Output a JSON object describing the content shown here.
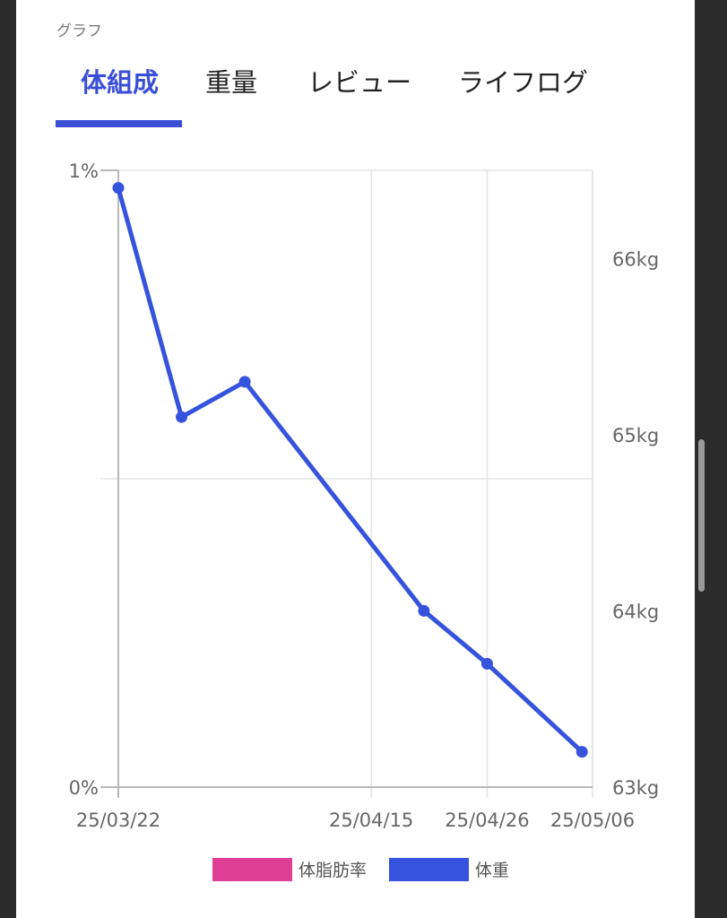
{
  "section_label": "グラフ",
  "tabs": [
    {
      "label": "体組成",
      "active": true
    },
    {
      "label": "重量",
      "active": false
    },
    {
      "label": "レビュー",
      "active": false
    },
    {
      "label": "ライフログ",
      "active": false
    }
  ],
  "colors": {
    "accent": "#3a4fd6",
    "weight_line": "#3553dc",
    "body_fat": "#dd3f95",
    "grid": "#e3e3e3",
    "axis": "#b9b9b9"
  },
  "chart_data": {
    "type": "line",
    "x_ticks": [
      "25/03/22",
      "25/04/15",
      "25/04/26",
      "25/05/06"
    ],
    "x_range": [
      "25/03/22",
      "25/05/06"
    ],
    "y_left": {
      "ticks": [
        "1%",
        "0%"
      ],
      "range": [
        0,
        1
      ]
    },
    "y_right": {
      "ticks": [
        "66kg",
        "65kg",
        "64kg",
        "63kg"
      ],
      "range": [
        63,
        66.5
      ]
    },
    "grid": true,
    "legend_position": "bottom",
    "series": [
      {
        "name": "体脂肪率",
        "axis": "left",
        "color": "#dd3f95",
        "points": []
      },
      {
        "name": "体重",
        "axis": "right",
        "color": "#3553dc",
        "points": [
          {
            "x": "25/03/22",
            "y": 66.4
          },
          {
            "x": "25/03/28",
            "y": 65.1
          },
          {
            "x": "25/04/03",
            "y": 65.3
          },
          {
            "x": "25/04/20",
            "y": 64.0
          },
          {
            "x": "25/04/26",
            "y": 63.7
          },
          {
            "x": "25/05/05",
            "y": 63.2
          }
        ]
      }
    ]
  }
}
